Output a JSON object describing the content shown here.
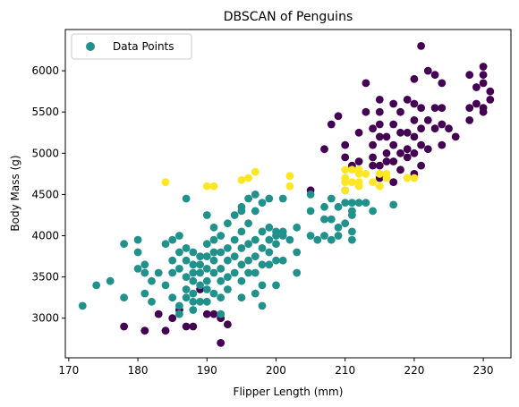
{
  "chart_data": {
    "type": "scatter",
    "title": "DBSCAN of Penguins",
    "xlabel": "Flipper Length (mm)",
    "ylabel": "Body Mass (g)",
    "xlim": [
      169.5,
      234.0
    ],
    "ylim": [
      2520,
      6500
    ],
    "xticks": [
      170,
      180,
      190,
      200,
      210,
      220,
      230
    ],
    "yticks": [
      3000,
      3500,
      4000,
      4500,
      5000,
      5500,
      6000
    ],
    "grid": false,
    "legend": {
      "position": "top-left",
      "entries": [
        {
          "label": "Data Points",
          "color": "#21918c"
        }
      ]
    },
    "cluster_colors": {
      "-1": "#440154",
      "0": "#21918c",
      "1": "#fde725"
    },
    "series": [
      {
        "cluster": -1,
        "color": "#440154",
        "points": [
          [
            178,
            2900
          ],
          [
            181,
            2850
          ],
          [
            184,
            2850
          ],
          [
            183,
            3050
          ],
          [
            185,
            3000
          ],
          [
            186,
            3100
          ],
          [
            187,
            2900
          ],
          [
            188,
            2900
          ],
          [
            190,
            3050
          ],
          [
            191,
            3050
          ],
          [
            192,
            3000
          ],
          [
            193,
            2925
          ],
          [
            192,
            2700
          ],
          [
            189,
            3350
          ],
          [
            205,
            4550
          ],
          [
            207,
            5050
          ],
          [
            208,
            5350
          ],
          [
            209,
            5450
          ],
          [
            210,
            5100
          ],
          [
            210,
            4950
          ],
          [
            211,
            4850
          ],
          [
            212,
            4900
          ],
          [
            212,
            5250
          ],
          [
            213,
            5850
          ],
          [
            213,
            5500
          ],
          [
            214,
            5300
          ],
          [
            214,
            5100
          ],
          [
            214,
            4950
          ],
          [
            214,
            4850
          ],
          [
            215,
            5650
          ],
          [
            215,
            5500
          ],
          [
            215,
            5350
          ],
          [
            215,
            5200
          ],
          [
            215,
            4850
          ],
          [
            215,
            4700
          ],
          [
            216,
            5200
          ],
          [
            216,
            5000
          ],
          [
            216,
            4900
          ],
          [
            217,
            5600
          ],
          [
            217,
            5350
          ],
          [
            217,
            5100
          ],
          [
            217,
            4900
          ],
          [
            217,
            4650
          ],
          [
            218,
            5500
          ],
          [
            218,
            5250
          ],
          [
            218,
            5000
          ],
          [
            218,
            4800
          ],
          [
            219,
            5650
          ],
          [
            219,
            5250
          ],
          [
            219,
            5050
          ],
          [
            219,
            4950
          ],
          [
            220,
            5900
          ],
          [
            220,
            5600
          ],
          [
            220,
            5400
          ],
          [
            220,
            5200
          ],
          [
            220,
            5000
          ],
          [
            220,
            4750
          ],
          [
            221,
            6300
          ],
          [
            221,
            5550
          ],
          [
            221,
            5300
          ],
          [
            221,
            5100
          ],
          [
            221,
            4850
          ],
          [
            222,
            6000
          ],
          [
            222,
            5400
          ],
          [
            222,
            5050
          ],
          [
            223,
            5950
          ],
          [
            223,
            5550
          ],
          [
            223,
            5300
          ],
          [
            224,
            5850
          ],
          [
            224,
            5550
          ],
          [
            224,
            5350
          ],
          [
            224,
            5100
          ],
          [
            225,
            5300
          ],
          [
            226,
            5200
          ],
          [
            228,
            5400
          ],
          [
            228,
            5550
          ],
          [
            228,
            5950
          ],
          [
            229,
            5800
          ],
          [
            229,
            5600
          ],
          [
            230,
            6050
          ],
          [
            230,
            5950
          ],
          [
            230,
            5850
          ],
          [
            230,
            5550
          ],
          [
            230,
            5500
          ],
          [
            231,
            5650
          ],
          [
            231,
            5750
          ]
        ]
      },
      {
        "cluster": 0,
        "color": "#21918c",
        "points": [
          [
            172,
            3150
          ],
          [
            174,
            3400
          ],
          [
            176,
            3450
          ],
          [
            178,
            3250
          ],
          [
            178,
            3900
          ],
          [
            180,
            3950
          ],
          [
            180,
            3600
          ],
          [
            180,
            3800
          ],
          [
            181,
            3300
          ],
          [
            181,
            3550
          ],
          [
            181,
            3650
          ],
          [
            182,
            3200
          ],
          [
            182,
            3450
          ],
          [
            183,
            3550
          ],
          [
            184,
            3400
          ],
          [
            184,
            3900
          ],
          [
            185,
            3700
          ],
          [
            185,
            3550
          ],
          [
            185,
            3950
          ],
          [
            185,
            3250
          ],
          [
            186,
            3600
          ],
          [
            186,
            3150
          ],
          [
            186,
            3050
          ],
          [
            186,
            4000
          ],
          [
            186,
            3800
          ],
          [
            187,
            3350
          ],
          [
            187,
            3500
          ],
          [
            187,
            3700
          ],
          [
            187,
            3850
          ],
          [
            187,
            3250
          ],
          [
            187,
            4450
          ],
          [
            188,
            3100
          ],
          [
            188,
            3300
          ],
          [
            188,
            3450
          ],
          [
            188,
            3650
          ],
          [
            188,
            3800
          ],
          [
            188,
            3550
          ],
          [
            188,
            3200
          ],
          [
            189,
            3200
          ],
          [
            189,
            3400
          ],
          [
            189,
            3550
          ],
          [
            189,
            3650
          ],
          [
            189,
            3750
          ],
          [
            190,
            3200
          ],
          [
            190,
            3450
          ],
          [
            190,
            3600
          ],
          [
            190,
            3750
          ],
          [
            190,
            3900
          ],
          [
            190,
            4250
          ],
          [
            190,
            3350
          ],
          [
            191,
            3300
          ],
          [
            191,
            3550
          ],
          [
            191,
            3700
          ],
          [
            191,
            3800
          ],
          [
            191,
            3950
          ],
          [
            191,
            4100
          ],
          [
            192,
            3250
          ],
          [
            192,
            3450
          ],
          [
            192,
            3600
          ],
          [
            192,
            3800
          ],
          [
            192,
            4000
          ],
          [
            192,
            3050
          ],
          [
            193,
            3350
          ],
          [
            193,
            3500
          ],
          [
            193,
            3700
          ],
          [
            193,
            3850
          ],
          [
            193,
            4150
          ],
          [
            194,
            3550
          ],
          [
            194,
            3750
          ],
          [
            194,
            3950
          ],
          [
            194,
            4250
          ],
          [
            195,
            3250
          ],
          [
            195,
            3450
          ],
          [
            195,
            3650
          ],
          [
            195,
            3850
          ],
          [
            195,
            4050
          ],
          [
            195,
            4300
          ],
          [
            195,
            4350
          ],
          [
            196,
            3550
          ],
          [
            196,
            3700
          ],
          [
            196,
            3900
          ],
          [
            196,
            4150
          ],
          [
            196,
            4450
          ],
          [
            197,
            3300
          ],
          [
            197,
            3550
          ],
          [
            197,
            3750
          ],
          [
            197,
            3950
          ],
          [
            197,
            4300
          ],
          [
            197,
            4500
          ],
          [
            198,
            3150
          ],
          [
            198,
            3650
          ],
          [
            198,
            3850
          ],
          [
            198,
            4050
          ],
          [
            198,
            4400
          ],
          [
            198,
            3400
          ],
          [
            199,
            3800
          ],
          [
            199,
            3650
          ],
          [
            199,
            3950
          ],
          [
            199,
            4100
          ],
          [
            199,
            4450
          ],
          [
            200,
            3400
          ],
          [
            200,
            3700
          ],
          [
            200,
            3900
          ],
          [
            200,
            4050
          ],
          [
            200,
            4000
          ],
          [
            201,
            3700
          ],
          [
            201,
            4050
          ],
          [
            201,
            4000
          ],
          [
            201,
            4450
          ],
          [
            202,
            3950
          ],
          [
            203,
            3800
          ],
          [
            203,
            3550
          ],
          [
            203,
            4100
          ],
          [
            205,
            4000
          ],
          [
            205,
            4300
          ],
          [
            205,
            4500
          ],
          [
            206,
            3950
          ],
          [
            207,
            4000
          ],
          [
            207,
            4200
          ],
          [
            207,
            4350
          ],
          [
            208,
            3950
          ],
          [
            208,
            4200
          ],
          [
            208,
            4450
          ],
          [
            209,
            4350
          ],
          [
            209,
            4100
          ],
          [
            209,
            4000
          ],
          [
            210,
            4150
          ],
          [
            210,
            4400
          ],
          [
            210,
            4550
          ],
          [
            211,
            3950
          ],
          [
            211,
            4300
          ],
          [
            211,
            4400
          ],
          [
            211,
            4250
          ],
          [
            211,
            4050
          ],
          [
            212,
            4400
          ],
          [
            213,
            4400
          ],
          [
            214,
            4300
          ],
          [
            217,
            4375
          ]
        ]
      },
      {
        "cluster": 1,
        "color": "#fde725",
        "points": [
          [
            184,
            4650
          ],
          [
            190,
            4600
          ],
          [
            191,
            4600
          ],
          [
            195,
            4675
          ],
          [
            196,
            4700
          ],
          [
            197,
            4775
          ],
          [
            202,
            4725
          ],
          [
            202,
            4600
          ],
          [
            210,
            4800
          ],
          [
            210,
            4700
          ],
          [
            210,
            4650
          ],
          [
            210,
            4550
          ],
          [
            211,
            4800
          ],
          [
            211,
            4650
          ],
          [
            212,
            4800
          ],
          [
            212,
            4750
          ],
          [
            212,
            4650
          ],
          [
            212,
            4600
          ],
          [
            213,
            4750
          ],
          [
            214,
            4650
          ],
          [
            215,
            4750
          ],
          [
            215,
            4600
          ],
          [
            216,
            4700
          ],
          [
            216,
            4750
          ],
          [
            219,
            4700
          ],
          [
            220,
            4700
          ]
        ]
      }
    ]
  }
}
